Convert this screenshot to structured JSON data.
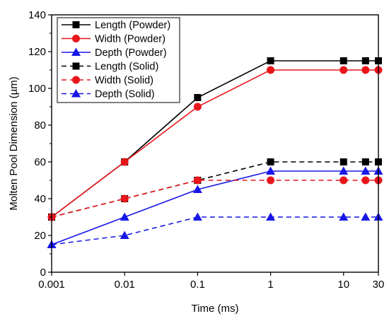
{
  "chart_data": {
    "type": "line",
    "xlabel": "Time (ms)",
    "ylabel": "Molten Pool Dimension (µm)",
    "x_scale": "log",
    "xlim": [
      0.001,
      30
    ],
    "ylim": [
      0,
      140
    ],
    "x_ticks": [
      {
        "value": 0.001,
        "label": "0.001"
      },
      {
        "value": 0.01,
        "label": "0.01"
      },
      {
        "value": 0.1,
        "label": "0.1"
      },
      {
        "value": 1,
        "label": "1"
      },
      {
        "value": 10,
        "label": "10"
      },
      {
        "value": 30,
        "label": "30"
      }
    ],
    "y_ticks": [
      0,
      20,
      40,
      60,
      80,
      100,
      120,
      140
    ],
    "grid": false,
    "legend_position": "top-left",
    "series": [
      {
        "name": "Length (Powder)",
        "color": "#000000",
        "marker": "square",
        "line": "solid",
        "points": [
          [
            0.001,
            30
          ],
          [
            0.01,
            60
          ],
          [
            0.1,
            95
          ],
          [
            1,
            115
          ],
          [
            10,
            115
          ],
          [
            20,
            115
          ],
          [
            30,
            115
          ]
        ]
      },
      {
        "name": "Width (Powder)",
        "color": "#e8161b",
        "marker": "circle",
        "line": "solid",
        "points": [
          [
            0.001,
            30
          ],
          [
            0.01,
            60
          ],
          [
            0.1,
            90
          ],
          [
            1,
            110
          ],
          [
            10,
            110
          ],
          [
            20,
            110
          ],
          [
            30,
            110
          ]
        ]
      },
      {
        "name": "Depth (Powder)",
        "color": "#1717e8",
        "marker": "triangle",
        "line": "solid",
        "points": [
          [
            0.001,
            15
          ],
          [
            0.01,
            30
          ],
          [
            0.1,
            45
          ],
          [
            1,
            55
          ],
          [
            10,
            55
          ],
          [
            20,
            55
          ],
          [
            30,
            55
          ]
        ]
      },
      {
        "name": "Length (Solid)",
        "color": "#000000",
        "marker": "square",
        "line": "dashed",
        "points": [
          [
            0.001,
            30
          ],
          [
            0.01,
            40
          ],
          [
            0.1,
            50
          ],
          [
            1,
            60
          ],
          [
            10,
            60
          ],
          [
            20,
            60
          ],
          [
            30,
            60
          ]
        ]
      },
      {
        "name": "Width (Solid)",
        "color": "#e8161b",
        "marker": "circle",
        "line": "dashed",
        "points": [
          [
            0.001,
            30
          ],
          [
            0.01,
            40
          ],
          [
            0.1,
            50
          ],
          [
            1,
            50
          ],
          [
            10,
            50
          ],
          [
            20,
            50
          ],
          [
            30,
            50
          ]
        ]
      },
      {
        "name": "Depth (Solid)",
        "color": "#1717e8",
        "marker": "triangle",
        "line": "dashed",
        "points": [
          [
            0.001,
            15
          ],
          [
            0.01,
            20
          ],
          [
            0.1,
            30
          ],
          [
            1,
            30
          ],
          [
            10,
            30
          ],
          [
            20,
            30
          ],
          [
            30,
            30
          ]
        ]
      }
    ]
  }
}
